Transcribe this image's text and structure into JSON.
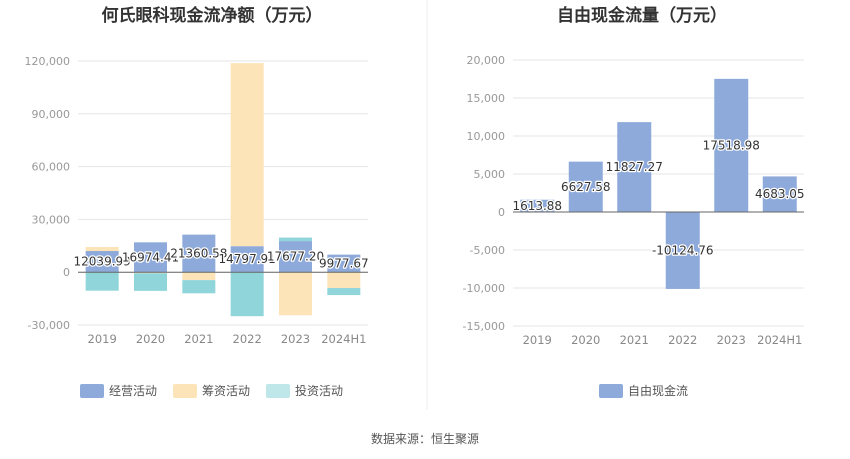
{
  "source": "数据来源：恒生聚源",
  "chart_data": [
    {
      "type": "bar",
      "stacked": true,
      "title": "何氏眼科现金流净额（万元）",
      "categories": [
        "2019",
        "2020",
        "2021",
        "2022",
        "2023",
        "2024H1"
      ],
      "ylim": [
        -30000,
        120000
      ],
      "yticks": [
        -30000,
        0,
        30000,
        60000,
        90000,
        120000
      ],
      "ytick_labels": [
        "-30,000",
        "0",
        "30,000",
        "60,000",
        "90,000",
        "120,000"
      ],
      "grid": true,
      "legend": "bottom",
      "series": [
        {
          "name": "经营活动",
          "color": "#8eaadb",
          "values": [
            12039.99,
            16974.41,
            21360.58,
            14797.91,
            17677.2,
            9977.67
          ],
          "labels": [
            "12039.99",
            "16974.41",
            "21360.58",
            "14797.91",
            "17677.20",
            "9977.67"
          ]
        },
        {
          "name": "筹资活动",
          "color": "#fde3b8",
          "values": [
            2300,
            -600,
            -4500,
            104000,
            -24500,
            -9000
          ]
        },
        {
          "name": "投资活动",
          "color": "#8fd5d9",
          "legend_color": "#bfe6e8",
          "values": [
            -10500,
            -10000,
            -7500,
            -25000,
            2000,
            -4000
          ]
        }
      ]
    },
    {
      "type": "bar",
      "title": "自由现金流量（万元）",
      "categories": [
        "2019",
        "2020",
        "2021",
        "2022",
        "2023",
        "2024H1"
      ],
      "ylim": [
        -15000,
        20000
      ],
      "yticks": [
        -15000,
        -10000,
        -5000,
        0,
        5000,
        10000,
        15000,
        20000
      ],
      "ytick_labels": [
        "-15,000",
        "-10,000",
        "-5,000",
        "0",
        "5,000",
        "10,000",
        "15,000",
        "20,000"
      ],
      "grid": true,
      "legend": "bottom",
      "series": [
        {
          "name": "自由现金流",
          "color": "#8eaadb",
          "values": [
            1613.88,
            6627.58,
            11827.27,
            -10124.76,
            17518.98,
            4683.05
          ],
          "labels": [
            "1613.88",
            "6627.58",
            "11827.27",
            "-10124.76",
            "17518.98",
            "4683.05"
          ]
        }
      ]
    }
  ]
}
